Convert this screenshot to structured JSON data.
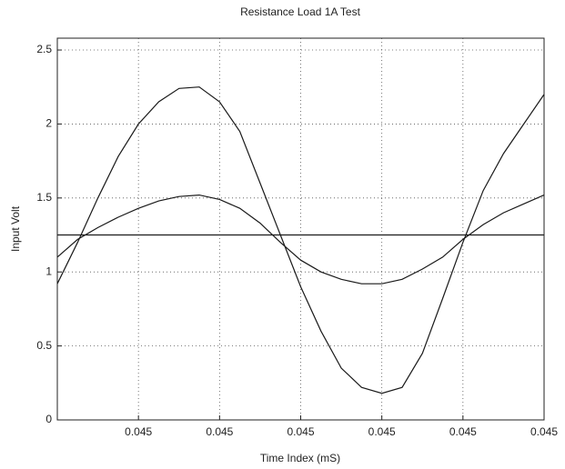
{
  "chart_data": {
    "type": "line",
    "title": "Resistance Load 1A Test",
    "x_label": "Time Index  (mS)",
    "y_label": "Input Volt",
    "x": [
      0,
      0.25,
      0.5,
      0.75,
      1,
      1.25,
      1.5,
      1.75,
      2,
      2.25,
      2.5,
      2.75,
      3,
      3.25,
      3.5,
      3.75,
      4,
      4.25,
      4.5,
      4.75,
      5,
      5.25,
      5.5,
      5.75,
      6
    ],
    "series": [
      {
        "color": "#1a1a1a",
        "values": [
          0.92,
          1.2,
          1.5,
          1.78,
          2.0,
          2.15,
          2.24,
          2.25,
          2.15,
          1.95,
          1.6,
          1.25,
          0.9,
          0.6,
          0.35,
          0.22,
          0.18,
          0.22,
          0.45,
          0.82,
          1.2,
          1.55,
          1.8,
          2.0,
          2.2
        ]
      },
      {
        "color": "#1a1a1a",
        "values": [
          1.1,
          1.22,
          1.3,
          1.37,
          1.43,
          1.48,
          1.51,
          1.52,
          1.49,
          1.43,
          1.33,
          1.2,
          1.08,
          1.0,
          0.95,
          0.92,
          0.92,
          0.95,
          1.02,
          1.1,
          1.22,
          1.32,
          1.4,
          1.46,
          1.52
        ]
      },
      {
        "color": "#1a1a1a",
        "values": [
          1.25,
          1.25,
          1.25,
          1.25,
          1.25,
          1.25,
          1.25,
          1.25,
          1.25,
          1.25,
          1.25,
          1.25,
          1.25,
          1.25,
          1.25,
          1.25,
          1.25,
          1.25,
          1.25,
          1.25,
          1.25,
          1.25,
          1.25,
          1.25,
          1.25
        ]
      }
    ],
    "xlim": [
      0,
      6
    ],
    "xticks": [
      {
        "value": 1,
        "label": "0.045"
      },
      {
        "value": 2,
        "label": "0.045"
      },
      {
        "value": 3,
        "label": "0.045"
      },
      {
        "value": 4,
        "label": "0.045"
      },
      {
        "value": 5,
        "label": "0.045"
      },
      {
        "value": 6,
        "label": "0.045"
      }
    ],
    "ylim": [
      0,
      2.58
    ],
    "yticks": [
      0,
      0.5,
      1,
      1.5,
      2,
      2.5
    ],
    "grid": true
  }
}
